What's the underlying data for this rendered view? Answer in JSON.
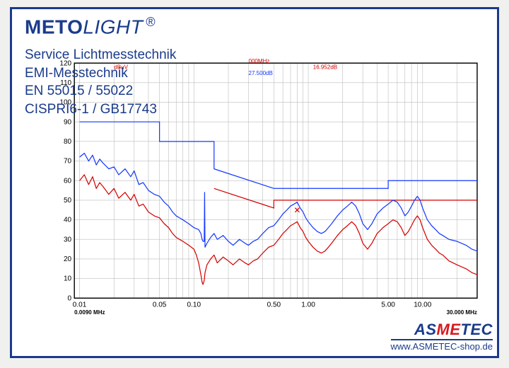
{
  "brand": {
    "part1": "METO",
    "part2": "LIGHT",
    "reg": "®"
  },
  "text_lines": [
    "Service Lichtmesstechnik",
    "EMI-Messtechnik",
    "EN 55015 / 55022",
    "CISPRI6-1 / GB17743"
  ],
  "footer": {
    "brand_as": "AS",
    "brand_me": "ME",
    "brand_tec": "TEC",
    "url": "www.ASMETEC-shop.de"
  },
  "annot": {
    "dbuv": "dBuV",
    "freq": "000MHz",
    "v1": "27.500dB",
    "v2": "16.952dB",
    "xmax_label": "30.000 MHz",
    "xmin_label": "0.0090 MHz"
  },
  "chart": {
    "type": "line",
    "background_color": "#ffffff",
    "grid_color": "#bdbdbd",
    "axis_color": "#000000",
    "xscale": "log",
    "xlim": [
      0.009,
      30.0
    ],
    "ylim": [
      0,
      120
    ],
    "ytick_step": 10,
    "xticks": [
      0.01,
      0.05,
      0.1,
      0.5,
      1.0,
      5.0,
      10.0
    ],
    "xgrid": [
      0.01,
      0.02,
      0.03,
      0.04,
      0.05,
      0.06,
      0.07,
      0.08,
      0.09,
      0.1,
      0.2,
      0.3,
      0.4,
      0.5,
      0.6,
      0.7,
      0.8,
      0.9,
      1.0,
      2,
      3,
      4,
      5,
      6,
      7,
      8,
      9,
      10,
      20,
      30
    ],
    "limit_blue": {
      "color": "#1438ff",
      "width": 1.2,
      "dash": "none",
      "points": [
        [
          0.01,
          90
        ],
        [
          0.05,
          90
        ],
        [
          0.05,
          80
        ],
        [
          0.15,
          80
        ],
        [
          0.15,
          66
        ],
        [
          0.5,
          56
        ],
        [
          0.5,
          56
        ],
        [
          5.0,
          56
        ],
        [
          5.0,
          60
        ],
        [
          30,
          60
        ]
      ]
    },
    "limit_red": {
      "color": "#d40000",
      "width": 1.2,
      "dash": "none",
      "points": [
        [
          0.15,
          56
        ],
        [
          0.5,
          46
        ],
        [
          0.5,
          50
        ],
        [
          5.0,
          50
        ],
        [
          5.0,
          50
        ],
        [
          30,
          50
        ]
      ]
    },
    "series_blue": {
      "color": "#1438ff",
      "width": 1.2,
      "points": [
        [
          0.01,
          72
        ],
        [
          0.011,
          74
        ],
        [
          0.012,
          70
        ],
        [
          0.013,
          73
        ],
        [
          0.014,
          68
        ],
        [
          0.015,
          71
        ],
        [
          0.016,
          69
        ],
        [
          0.018,
          66
        ],
        [
          0.02,
          67
        ],
        [
          0.022,
          63
        ],
        [
          0.025,
          66
        ],
        [
          0.028,
          62
        ],
        [
          0.03,
          65
        ],
        [
          0.033,
          58
        ],
        [
          0.036,
          59
        ],
        [
          0.04,
          55
        ],
        [
          0.045,
          53
        ],
        [
          0.05,
          52
        ],
        [
          0.055,
          49
        ],
        [
          0.06,
          47
        ],
        [
          0.065,
          44
        ],
        [
          0.07,
          42
        ],
        [
          0.08,
          40
        ],
        [
          0.09,
          38
        ],
        [
          0.1,
          36
        ],
        [
          0.11,
          35
        ],
        [
          0.115,
          33
        ],
        [
          0.118,
          30
        ],
        [
          0.12,
          29
        ],
        [
          0.123,
          29
        ],
        [
          0.124,
          54
        ],
        [
          0.125,
          26
        ],
        [
          0.13,
          28
        ],
        [
          0.14,
          31
        ],
        [
          0.15,
          33
        ],
        [
          0.16,
          30
        ],
        [
          0.18,
          32
        ],
        [
          0.2,
          29
        ],
        [
          0.22,
          27
        ],
        [
          0.25,
          30
        ],
        [
          0.28,
          28
        ],
        [
          0.3,
          27
        ],
        [
          0.33,
          29
        ],
        [
          0.36,
          30
        ],
        [
          0.4,
          33
        ],
        [
          0.45,
          36
        ],
        [
          0.5,
          37
        ],
        [
          0.55,
          40
        ],
        [
          0.6,
          43
        ],
        [
          0.65,
          45
        ],
        [
          0.7,
          47
        ],
        [
          0.75,
          48
        ],
        [
          0.8,
          49
        ],
        [
          0.85,
          46
        ],
        [
          0.9,
          44
        ],
        [
          0.95,
          41
        ],
        [
          1.0,
          39
        ],
        [
          1.1,
          36
        ],
        [
          1.2,
          34
        ],
        [
          1.3,
          33
        ],
        [
          1.4,
          34
        ],
        [
          1.5,
          36
        ],
        [
          1.6,
          38
        ],
        [
          1.8,
          42
        ],
        [
          2.0,
          45
        ],
        [
          2.2,
          47
        ],
        [
          2.4,
          49
        ],
        [
          2.6,
          47
        ],
        [
          2.8,
          43
        ],
        [
          3.0,
          38
        ],
        [
          3.3,
          35
        ],
        [
          3.6,
          38
        ],
        [
          4.0,
          43
        ],
        [
          4.5,
          46
        ],
        [
          5.0,
          48
        ],
        [
          5.5,
          50
        ],
        [
          6.0,
          49
        ],
        [
          6.5,
          46
        ],
        [
          7.0,
          42
        ],
        [
          7.5,
          44
        ],
        [
          8.0,
          47
        ],
        [
          8.5,
          50
        ],
        [
          9.0,
          52
        ],
        [
          9.5,
          50
        ],
        [
          10.0,
          46
        ],
        [
          11.0,
          40
        ],
        [
          12.0,
          37
        ],
        [
          13.0,
          35
        ],
        [
          14.0,
          33
        ],
        [
          15.0,
          32
        ],
        [
          17.0,
          30
        ],
        [
          20.0,
          29
        ],
        [
          24.0,
          27
        ],
        [
          27.0,
          25
        ],
        [
          30.0,
          24
        ]
      ]
    },
    "series_red": {
      "color": "#d40000",
      "width": 1.2,
      "points": [
        [
          0.01,
          60
        ],
        [
          0.011,
          63
        ],
        [
          0.012,
          58
        ],
        [
          0.013,
          62
        ],
        [
          0.014,
          56
        ],
        [
          0.015,
          59
        ],
        [
          0.016,
          57
        ],
        [
          0.018,
          53
        ],
        [
          0.02,
          56
        ],
        [
          0.022,
          51
        ],
        [
          0.025,
          54
        ],
        [
          0.028,
          50
        ],
        [
          0.03,
          53
        ],
        [
          0.033,
          47
        ],
        [
          0.036,
          48
        ],
        [
          0.04,
          44
        ],
        [
          0.045,
          42
        ],
        [
          0.05,
          41
        ],
        [
          0.055,
          38
        ],
        [
          0.06,
          36
        ],
        [
          0.065,
          33
        ],
        [
          0.07,
          31
        ],
        [
          0.08,
          29
        ],
        [
          0.09,
          27
        ],
        [
          0.1,
          25
        ],
        [
          0.105,
          22
        ],
        [
          0.11,
          18
        ],
        [
          0.115,
          12
        ],
        [
          0.118,
          8
        ],
        [
          0.12,
          7
        ],
        [
          0.123,
          9
        ],
        [
          0.125,
          13
        ],
        [
          0.13,
          17
        ],
        [
          0.14,
          20
        ],
        [
          0.15,
          22
        ],
        [
          0.16,
          18
        ],
        [
          0.18,
          21
        ],
        [
          0.2,
          19
        ],
        [
          0.22,
          17
        ],
        [
          0.25,
          20
        ],
        [
          0.28,
          18
        ],
        [
          0.3,
          17
        ],
        [
          0.33,
          19
        ],
        [
          0.36,
          20
        ],
        [
          0.4,
          23
        ],
        [
          0.45,
          26
        ],
        [
          0.5,
          27
        ],
        [
          0.55,
          30
        ],
        [
          0.6,
          33
        ],
        [
          0.65,
          35
        ],
        [
          0.7,
          37
        ],
        [
          0.75,
          38
        ],
        [
          0.8,
          39
        ],
        [
          0.85,
          36
        ],
        [
          0.9,
          34
        ],
        [
          0.95,
          31
        ],
        [
          1.0,
          29
        ],
        [
          1.1,
          26
        ],
        [
          1.2,
          24
        ],
        [
          1.3,
          23
        ],
        [
          1.4,
          24
        ],
        [
          1.5,
          26
        ],
        [
          1.6,
          28
        ],
        [
          1.8,
          32
        ],
        [
          2.0,
          35
        ],
        [
          2.2,
          37
        ],
        [
          2.4,
          39
        ],
        [
          2.6,
          37
        ],
        [
          2.8,
          33
        ],
        [
          3.0,
          28
        ],
        [
          3.3,
          25
        ],
        [
          3.6,
          28
        ],
        [
          4.0,
          33
        ],
        [
          4.5,
          36
        ],
        [
          5.0,
          38
        ],
        [
          5.5,
          40
        ],
        [
          6.0,
          39
        ],
        [
          6.5,
          36
        ],
        [
          7.0,
          32
        ],
        [
          7.5,
          34
        ],
        [
          8.0,
          37
        ],
        [
          8.5,
          40
        ],
        [
          9.0,
          42
        ],
        [
          9.5,
          40
        ],
        [
          10.0,
          36
        ],
        [
          11.0,
          30
        ],
        [
          12.0,
          27
        ],
        [
          13.0,
          25
        ],
        [
          14.0,
          23
        ],
        [
          15.0,
          22
        ],
        [
          17.0,
          19
        ],
        [
          20.0,
          17
        ],
        [
          24.0,
          15
        ],
        [
          27.0,
          13
        ],
        [
          30.0,
          12
        ]
      ]
    },
    "label_fontsize": 10,
    "axis_width": 1.4
  }
}
